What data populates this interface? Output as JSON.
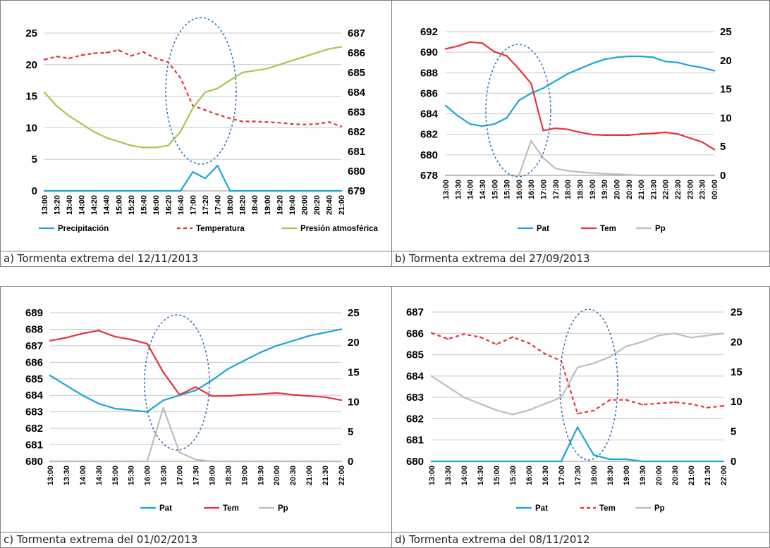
{
  "panels": [
    {
      "id": "a",
      "caption": "a) Tormenta extrema del 12/11/2013",
      "chart_data": {
        "type": "line",
        "x": [
          "13:00",
          "13:20",
          "13:40",
          "14:00",
          "14:20",
          "14:40",
          "15:00",
          "15:20",
          "15:40",
          "16:00",
          "16:20",
          "16:40",
          "17:00",
          "17:20",
          "17:40",
          "18:00",
          "18:20",
          "18:40",
          "19:00",
          "19:20",
          "19:40",
          "20:00",
          "20:20",
          "20:40",
          "21:00"
        ],
        "left_axis": {
          "ticks": [
            0,
            5,
            10,
            15,
            20,
            25
          ],
          "ylim": [
            0,
            25
          ]
        },
        "right_axis": {
          "ticks": [
            679,
            680,
            681,
            682,
            683,
            684,
            685,
            686,
            687
          ],
          "ylim": [
            679,
            687
          ]
        },
        "grid": true,
        "legend_position": "bottom",
        "series": [
          {
            "name": "Precipitación",
            "axis": "left",
            "color": "#1aa6d8",
            "dash": false,
            "values": [
              0,
              0,
              0,
              0,
              0,
              0,
              0,
              0,
              0,
              0,
              0,
              0,
              3,
              2,
              4,
              0,
              0,
              0,
              0,
              0,
              0,
              0,
              0,
              0,
              0
            ]
          },
          {
            "name": "Temperatura",
            "axis": "left",
            "color": "#e8323c",
            "dash": true,
            "values": [
              20.8,
              21.3,
              21.0,
              21.5,
              21.8,
              21.9,
              22.3,
              21.4,
              22.0,
              21.0,
              20.4,
              17.9,
              13.5,
              12.8,
              12.1,
              11.5,
              11.0,
              11.0,
              10.9,
              10.8,
              10.6,
              10.5,
              10.6,
              10.9,
              10.2
            ]
          },
          {
            "name": "Presión atmosférica",
            "axis": "right",
            "color": "#a9c64a",
            "dash": false,
            "values": [
              684.0,
              683.3,
              682.8,
              682.4,
              682.0,
              681.7,
              681.5,
              681.3,
              681.2,
              681.2,
              681.3,
              682.0,
              683.2,
              684.0,
              684.2,
              684.6,
              685.0,
              685.1,
              685.2,
              685.4,
              685.6,
              685.8,
              686.0,
              686.2,
              686.3
            ]
          }
        ],
        "legend_order": [
          "Precipitación",
          "Temperatura",
          "Presión atmosférica"
        ]
      }
    },
    {
      "id": "b",
      "caption": "b) Tormenta extrema del 27/09/2013",
      "chart_data": {
        "type": "line",
        "x": [
          "13:00",
          "13:30",
          "14:00",
          "14:30",
          "15:00",
          "15:30",
          "16:00",
          "16:30",
          "17:00",
          "17:30",
          "18:00",
          "18:30",
          "19:00",
          "19:30",
          "20:00",
          "20:30",
          "21:00",
          "21:30",
          "22:00",
          "22:30",
          "23:00",
          "23:30",
          "00:00"
        ],
        "left_axis": {
          "ticks": [
            678,
            680,
            682,
            684,
            686,
            688,
            690,
            692
          ],
          "ylim": [
            678,
            692
          ]
        },
        "right_axis": {
          "ticks": [
            0,
            5,
            10,
            15,
            20,
            25
          ],
          "ylim": [
            0,
            25
          ]
        },
        "grid": true,
        "legend_position": "bottom",
        "series": [
          {
            "name": "Pat",
            "axis": "left",
            "color": "#1aa6d8",
            "dash": false,
            "values": [
              684.8,
              683.8,
              683.0,
              682.8,
              683.0,
              683.6,
              685.3,
              686.0,
              686.5,
              687.2,
              687.9,
              688.4,
              688.9,
              689.3,
              689.5,
              689.6,
              689.6,
              689.5,
              689.1,
              689.0,
              688.7,
              688.5,
              688.2
            ]
          },
          {
            "name": "Tem",
            "axis": "right",
            "color": "#e8323c",
            "dash": false,
            "values": [
              22.0,
              22.5,
              23.2,
              23.0,
              21.5,
              20.8,
              18.5,
              16.0,
              7.8,
              8.2,
              8.0,
              7.5,
              7.1,
              7.0,
              7.0,
              7.0,
              7.2,
              7.3,
              7.5,
              7.2,
              6.5,
              5.8,
              4.5
            ]
          },
          {
            "name": "Pp",
            "axis": "right",
            "color": "#bdbdbd",
            "dash": false,
            "values": [
              0,
              0,
              0,
              0,
              0,
              0,
              0,
              6,
              3,
              1.2,
              0.8,
              0.6,
              0.4,
              0.3,
              0.2,
              0.1,
              0,
              0,
              0,
              0,
              0,
              0,
              0
            ]
          }
        ],
        "legend_order": [
          "Pat",
          "Tem",
          "Pp"
        ]
      }
    },
    {
      "id": "c",
      "caption": "c) Tormenta extrema del 01/02/2013",
      "chart_data": {
        "type": "line",
        "x": [
          "13:00",
          "13:30",
          "14:00",
          "14:30",
          "15:00",
          "15:30",
          "16:00",
          "16:30",
          "17:00",
          "17:30",
          "18:00",
          "18:30",
          "19:00",
          "19:30",
          "20:00",
          "20:30",
          "21:00",
          "21:30",
          "22:00"
        ],
        "left_axis": {
          "ticks": [
            680,
            681,
            682,
            683,
            684,
            685,
            686,
            687,
            688,
            689
          ],
          "ylim": [
            680,
            689
          ]
        },
        "right_axis": {
          "ticks": [
            0,
            5,
            10,
            15,
            20,
            25
          ],
          "ylim": [
            0,
            25
          ]
        },
        "grid": true,
        "legend_position": "bottom",
        "series": [
          {
            "name": "Pat",
            "axis": "left",
            "color": "#1aa6d8",
            "dash": false,
            "values": [
              685.2,
              684.6,
              684.0,
              683.5,
              683.2,
              683.1,
              683.0,
              683.7,
              684.0,
              684.3,
              684.9,
              685.6,
              686.1,
              686.6,
              687.0,
              687.3,
              687.6,
              687.8,
              688.0
            ]
          },
          {
            "name": "Tem",
            "axis": "right",
            "color": "#e8323c",
            "dash": false,
            "values": [
              20.3,
              20.8,
              21.5,
              22.0,
              21.0,
              20.5,
              19.8,
              15.0,
              11.2,
              12.5,
              11.0,
              11.0,
              11.2,
              11.3,
              11.5,
              11.2,
              11.0,
              10.8,
              10.3
            ]
          },
          {
            "name": "Pp",
            "axis": "right",
            "color": "#bdbdbd",
            "dash": false,
            "values": [
              0,
              0,
              0,
              0,
              0,
              0,
              0,
              9,
              1.5,
              0.3,
              0,
              0,
              0,
              0,
              0,
              0,
              0,
              0,
              0
            ]
          }
        ],
        "legend_order": [
          "Pat",
          "Tem",
          "Pp"
        ]
      }
    },
    {
      "id": "d",
      "caption": "d) Tormenta extrema del 08/11/2012",
      "chart_data": {
        "type": "line",
        "x": [
          "13:00",
          "13:30",
          "14:00",
          "14:30",
          "15:00",
          "15:30",
          "16:00",
          "16:30",
          "17:00",
          "17:30",
          "18:00",
          "18:30",
          "19:00",
          "19:30",
          "20:00",
          "20:30",
          "21:00",
          "21:30",
          "22:00"
        ],
        "left_axis": {
          "ticks": [
            680,
            681,
            682,
            683,
            684,
            685,
            686,
            687
          ],
          "ylim": [
            680,
            687
          ]
        },
        "right_axis": {
          "ticks": [
            0,
            5,
            10,
            15,
            20,
            25
          ],
          "ylim": [
            0,
            25
          ]
        },
        "grid": true,
        "legend_position": "bottom",
        "series": [
          {
            "name": "Pat",
            "axis": "left",
            "color": "#1aa6d8",
            "dash": false,
            "values": [
              680,
              680,
              680,
              680,
              680,
              680,
              680,
              680,
              680,
              681.6,
              680.3,
              680.1,
              680.1,
              680,
              680,
              680,
              680,
              680,
              680
            ]
          },
          {
            "name": "Tem",
            "axis": "right",
            "color": "#e8323c",
            "dash": true,
            "values": [
              21.5,
              20.5,
              21.3,
              20.8,
              19.6,
              20.8,
              19.8,
              18.0,
              16.8,
              8.0,
              8.5,
              10.3,
              10.3,
              9.5,
              9.7,
              9.9,
              9.6,
              9.0,
              9.3
            ]
          },
          {
            "name": "Pp",
            "axis": "left",
            "color": "#bdbdbd",
            "dash": false,
            "values": [
              684.0,
              683.5,
              683.0,
              682.7,
              682.4,
              682.2,
              682.4,
              682.7,
              683.0,
              684.4,
              684.6,
              684.9,
              685.4,
              685.6,
              685.9,
              686.0,
              685.8,
              685.9,
              686.0
            ]
          }
        ],
        "legend_order": [
          "Pat",
          "Tem",
          "Pp"
        ]
      }
    }
  ]
}
